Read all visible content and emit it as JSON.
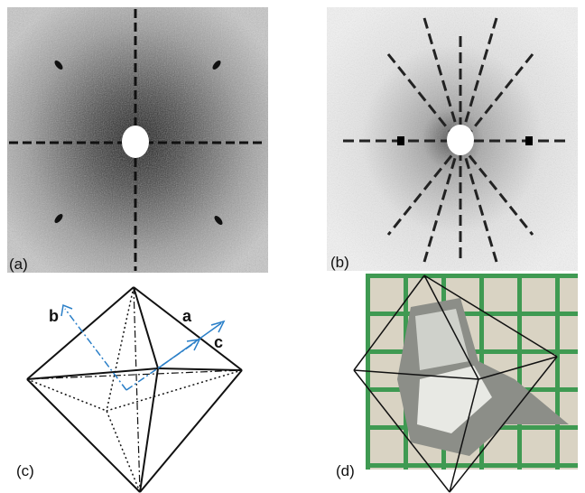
{
  "panels": {
    "a": "(a)",
    "b": "(b)",
    "c": "(c)",
    "d": "(d)"
  },
  "axes": {
    "b": "b",
    "a": "a",
    "c": "c"
  }
}
